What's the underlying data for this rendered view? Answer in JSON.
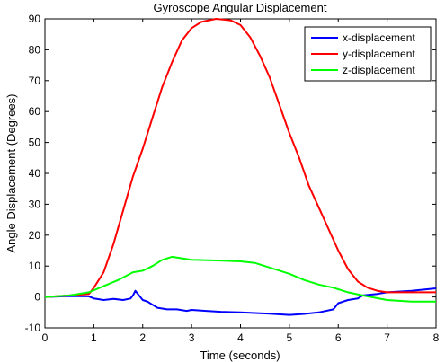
{
  "chart_data": {
    "type": "line",
    "title": "Gyroscope Angular Displacement",
    "xlabel": "Time (seconds)",
    "ylabel": "Angle Displacement (Degrees)",
    "xlim": [
      0,
      8
    ],
    "ylim": [
      -10,
      90
    ],
    "x_ticks": [
      0,
      1,
      2,
      3,
      4,
      5,
      6,
      7,
      8
    ],
    "y_ticks": [
      -10,
      0,
      10,
      20,
      30,
      40,
      50,
      60,
      70,
      80,
      90
    ],
    "grid": false,
    "legend_position": "top-right",
    "series": [
      {
        "name": "x-displacement",
        "color": "#0000ff",
        "points": [
          [
            0,
            0
          ],
          [
            0.5,
            0.3
          ],
          [
            0.9,
            0.2
          ],
          [
            1.0,
            -0.5
          ],
          [
            1.2,
            -1
          ],
          [
            1.4,
            -0.6
          ],
          [
            1.6,
            -1
          ],
          [
            1.75,
            -0.5
          ],
          [
            1.8,
            0.5
          ],
          [
            1.85,
            2
          ],
          [
            1.9,
            1
          ],
          [
            2.0,
            -1
          ],
          [
            2.1,
            -1.5
          ],
          [
            2.2,
            -2.5
          ],
          [
            2.3,
            -3.5
          ],
          [
            2.5,
            -4
          ],
          [
            2.7,
            -4
          ],
          [
            2.9,
            -4.5
          ],
          [
            3.0,
            -4.2
          ],
          [
            3.3,
            -4.5
          ],
          [
            3.6,
            -4.8
          ],
          [
            4.0,
            -5
          ],
          [
            4.3,
            -5.2
          ],
          [
            4.6,
            -5.4
          ],
          [
            5.0,
            -5.8
          ],
          [
            5.3,
            -5.5
          ],
          [
            5.6,
            -5
          ],
          [
            5.9,
            -4
          ],
          [
            6.0,
            -2
          ],
          [
            6.2,
            -1
          ],
          [
            6.4,
            -0.5
          ],
          [
            6.5,
            0.5
          ],
          [
            6.8,
            1
          ],
          [
            7.0,
            1.5
          ],
          [
            7.5,
            2
          ],
          [
            8.0,
            2.8
          ]
        ]
      },
      {
        "name": "y-displacement",
        "color": "#ff0000",
        "points": [
          [
            0,
            0
          ],
          [
            0.5,
            0.5
          ],
          [
            0.9,
            1
          ],
          [
            1.0,
            3
          ],
          [
            1.2,
            8
          ],
          [
            1.4,
            17
          ],
          [
            1.6,
            28
          ],
          [
            1.8,
            39
          ],
          [
            2.0,
            48
          ],
          [
            2.2,
            58
          ],
          [
            2.4,
            68
          ],
          [
            2.6,
            76
          ],
          [
            2.8,
            83
          ],
          [
            3.0,
            87
          ],
          [
            3.2,
            89
          ],
          [
            3.5,
            90
          ],
          [
            3.8,
            89.5
          ],
          [
            4.0,
            88
          ],
          [
            4.2,
            84
          ],
          [
            4.4,
            78
          ],
          [
            4.6,
            71
          ],
          [
            4.8,
            62
          ],
          [
            5.0,
            53
          ],
          [
            5.2,
            45
          ],
          [
            5.4,
            36
          ],
          [
            5.6,
            29
          ],
          [
            5.8,
            22
          ],
          [
            6.0,
            15
          ],
          [
            6.2,
            9
          ],
          [
            6.4,
            5
          ],
          [
            6.6,
            3
          ],
          [
            6.8,
            2
          ],
          [
            7.0,
            1.5
          ],
          [
            7.5,
            1.5
          ],
          [
            8.0,
            1.5
          ]
        ]
      },
      {
        "name": "z-displacement",
        "color": "#00ff00",
        "points": [
          [
            0,
            0
          ],
          [
            0.5,
            0.5
          ],
          [
            0.9,
            1.5
          ],
          [
            1.2,
            3.5
          ],
          [
            1.5,
            5.5
          ],
          [
            1.8,
            8
          ],
          [
            2.0,
            8.5
          ],
          [
            2.2,
            10
          ],
          [
            2.4,
            12
          ],
          [
            2.6,
            13
          ],
          [
            2.8,
            12.5
          ],
          [
            3.0,
            12
          ],
          [
            3.5,
            11.8
          ],
          [
            4.0,
            11.5
          ],
          [
            4.3,
            11
          ],
          [
            4.6,
            9.5
          ],
          [
            5.0,
            7.5
          ],
          [
            5.3,
            5.5
          ],
          [
            5.6,
            4
          ],
          [
            5.9,
            3
          ],
          [
            6.2,
            1.5
          ],
          [
            6.5,
            0.5
          ],
          [
            7.0,
            -1
          ],
          [
            7.5,
            -1.5
          ],
          [
            8.0,
            -1.5
          ]
        ]
      }
    ]
  }
}
